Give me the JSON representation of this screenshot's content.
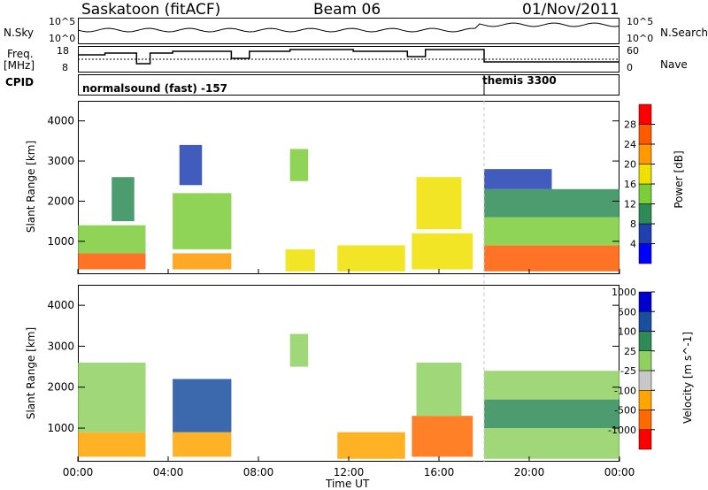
{
  "header": {
    "station": "Saskatoon (fitACF)",
    "beam": "Beam 06",
    "date": "01/Nov/2011"
  },
  "left_labels": {
    "nsky": "N.Sky",
    "freq": "Freq.",
    "freq_unit": "[MHz]",
    "cpid": "CPID"
  },
  "right_labels": {
    "nsearch": "N.Search",
    "nave": "Nave"
  },
  "noise_panel": {
    "tick_top": "10^5",
    "tick_bottom": "10^0",
    "right_tick_top": "10^5",
    "right_tick_bottom": "10^0"
  },
  "freq_panel": {
    "left_ticks": [
      "18",
      "8"
    ],
    "right_ticks": [
      "60",
      "0"
    ]
  },
  "cpid_panel": {
    "mode_1": "normalsound (fast) -157",
    "mode_2": "themis 3300"
  },
  "colors": {
    "power_scale": [
      "#0000ff",
      "#2040b0",
      "#2e8b57",
      "#7ccd3a",
      "#f0e000",
      "#ff9900",
      "#ff5a00",
      "#ff0000"
    ],
    "velocity_scale": [
      "#ff0000",
      "#ff6a00",
      "#ffa500",
      "#c8c8c8",
      "#8fd060",
      "#2e8b57",
      "#1a4fa0",
      "#0000cc"
    ]
  },
  "chart_data": [
    {
      "type": "heatmap",
      "name": "Power",
      "xlabel": "Time UT",
      "ylabel": "Slant Range [km]",
      "colorbar_label": "Power [dB]",
      "colorbar_ticks": [
        "4",
        "8",
        "12",
        "16",
        "20",
        "24",
        "28"
      ],
      "x_ticks": [
        "00:00",
        "04:00",
        "08:00",
        "12:00",
        "16:00",
        "20:00",
        "00:00"
      ],
      "y_ticks": [
        "1000",
        "2000",
        "3000",
        "4000"
      ],
      "xlim": [
        0,
        24
      ],
      "ylim": [
        180,
        4500
      ],
      "echo_regions": [
        {
          "t_start": 0.0,
          "t_end": 3.0,
          "r_start": 300,
          "r_end": 700,
          "value": 28
        },
        {
          "t_start": 0.0,
          "t_end": 3.0,
          "r_start": 700,
          "r_end": 1400,
          "value": 16
        },
        {
          "t_start": 1.5,
          "t_end": 2.5,
          "r_start": 1500,
          "r_end": 2600,
          "value": 12
        },
        {
          "t_start": 4.2,
          "t_end": 6.8,
          "r_start": 300,
          "r_end": 700,
          "value": 24
        },
        {
          "t_start": 4.2,
          "t_end": 6.8,
          "r_start": 800,
          "r_end": 2200,
          "value": 16
        },
        {
          "t_start": 4.5,
          "t_end": 5.5,
          "r_start": 2400,
          "r_end": 3400,
          "value": 8
        },
        {
          "t_start": 9.4,
          "t_end": 10.2,
          "r_start": 2500,
          "r_end": 3300,
          "value": 16
        },
        {
          "t_start": 9.2,
          "t_end": 10.5,
          "r_start": 250,
          "r_end": 800,
          "value": 20
        },
        {
          "t_start": 11.5,
          "t_end": 14.5,
          "r_start": 250,
          "r_end": 900,
          "value": 20
        },
        {
          "t_start": 14.8,
          "t_end": 17.5,
          "r_start": 300,
          "r_end": 1200,
          "value": 20
        },
        {
          "t_start": 15.0,
          "t_end": 17.0,
          "r_start": 1300,
          "r_end": 2600,
          "value": 20
        },
        {
          "t_start": 18.0,
          "t_end": 24.0,
          "r_start": 250,
          "r_end": 900,
          "value": 28
        },
        {
          "t_start": 18.0,
          "t_end": 24.0,
          "r_start": 900,
          "r_end": 1600,
          "value": 16
        },
        {
          "t_start": 18.0,
          "t_end": 24.0,
          "r_start": 1600,
          "r_end": 2300,
          "value": 12
        },
        {
          "t_start": 18.0,
          "t_end": 21.0,
          "r_start": 2300,
          "r_end": 2800,
          "value": 8
        }
      ]
    },
    {
      "type": "heatmap",
      "name": "Velocity",
      "xlabel": "Time UT",
      "ylabel": "Slant Range [km]",
      "colorbar_label": "Velocity [m s^-1]",
      "colorbar_ticks": [
        "-1000",
        "-500",
        "-100",
        "-25",
        "25",
        "100",
        "500",
        "1000"
      ],
      "x_ticks": [
        "00:00",
        "04:00",
        "08:00",
        "12:00",
        "16:00",
        "20:00",
        "00:00"
      ],
      "y_ticks": [
        "1000",
        "2000",
        "3000",
        "4000"
      ],
      "xlim": [
        0,
        24
      ],
      "ylim": [
        180,
        4500
      ],
      "echo_regions": [
        {
          "t_start": 0.0,
          "t_end": 3.0,
          "r_start": 300,
          "r_end": 900,
          "value": -100
        },
        {
          "t_start": 0.0,
          "t_end": 3.0,
          "r_start": 900,
          "r_end": 2600,
          "value": 0
        },
        {
          "t_start": 4.2,
          "t_end": 6.8,
          "r_start": 300,
          "r_end": 900,
          "value": -100
        },
        {
          "t_start": 4.2,
          "t_end": 6.8,
          "r_start": 900,
          "r_end": 2200,
          "value": 500
        },
        {
          "t_start": 9.4,
          "t_end": 10.2,
          "r_start": 2500,
          "r_end": 3300,
          "value": 0
        },
        {
          "t_start": 11.5,
          "t_end": 14.5,
          "r_start": 250,
          "r_end": 900,
          "value": -100
        },
        {
          "t_start": 14.8,
          "t_end": 17.5,
          "r_start": 300,
          "r_end": 1300,
          "value": -500
        },
        {
          "t_start": 15.0,
          "t_end": 17.0,
          "r_start": 1300,
          "r_end": 2600,
          "value": 0
        },
        {
          "t_start": 18.0,
          "t_end": 24.0,
          "r_start": 250,
          "r_end": 1000,
          "value": 0
        },
        {
          "t_start": 18.0,
          "t_end": 24.0,
          "r_start": 1000,
          "r_end": 1700,
          "value": 100
        },
        {
          "t_start": 18.0,
          "t_end": 24.0,
          "r_start": 1700,
          "r_end": 2400,
          "value": 0
        }
      ]
    }
  ]
}
